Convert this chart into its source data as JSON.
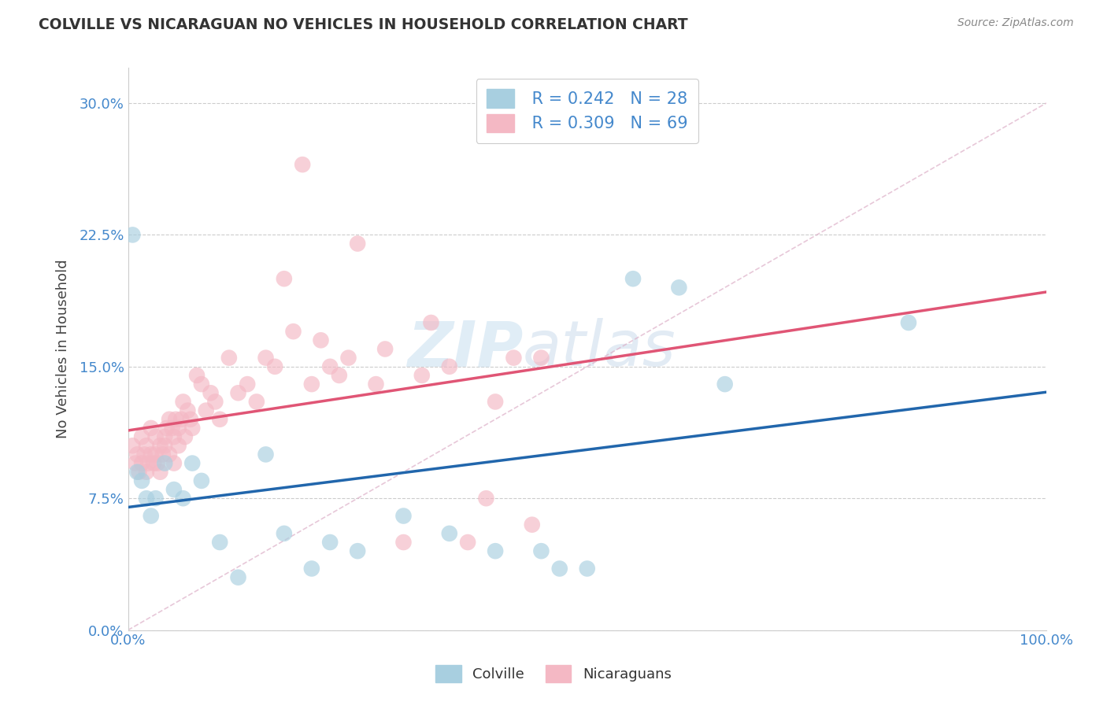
{
  "title": "COLVILLE VS NICARAGUAN NO VEHICLES IN HOUSEHOLD CORRELATION CHART",
  "source": "Source: ZipAtlas.com",
  "ylabel": "No Vehicles in Household",
  "xlim": [
    0,
    100
  ],
  "ylim": [
    0,
    32
  ],
  "ytick_vals": [
    0,
    7.5,
    15.0,
    22.5,
    30.0
  ],
  "ytick_labels": [
    "0.0%",
    "7.5%",
    "15.0%",
    "22.5%",
    "30.0%"
  ],
  "xtick_vals": [
    0,
    100
  ],
  "xtick_labels": [
    "0.0%",
    "100.0%"
  ],
  "legend_r1": "R = 0.242",
  "legend_n1": "N = 28",
  "legend_r2": "R = 0.309",
  "legend_n2": "N = 69",
  "colville_color": "#a8cfe0",
  "nicaraguan_color": "#f4b8c4",
  "line_color_colville": "#2166ac",
  "line_color_nicaraguan": "#e05575",
  "diagonal_color": "#e0b0c8",
  "watermark_zip": "ZIP",
  "watermark_atlas": "atlas",
  "colville_x": [
    0.5,
    1.0,
    1.5,
    2.0,
    2.5,
    3.0,
    4.0,
    5.0,
    6.0,
    7.0,
    8.0,
    10.0,
    12.0,
    15.0,
    17.0,
    20.0,
    22.0,
    25.0,
    30.0,
    35.0,
    40.0,
    45.0,
    47.0,
    50.0,
    55.0,
    60.0,
    65.0,
    85.0
  ],
  "colville_y": [
    22.5,
    9.0,
    8.5,
    7.5,
    6.5,
    7.5,
    9.5,
    8.0,
    7.5,
    9.5,
    8.5,
    5.0,
    3.0,
    10.0,
    5.5,
    3.5,
    5.0,
    4.5,
    6.5,
    5.5,
    4.5,
    4.5,
    3.5,
    3.5,
    20.0,
    19.5,
    14.0,
    17.5
  ],
  "nicaraguan_x": [
    0.5,
    0.8,
    1.0,
    1.2,
    1.5,
    1.5,
    1.8,
    2.0,
    2.0,
    2.2,
    2.5,
    2.5,
    2.8,
    3.0,
    3.0,
    3.2,
    3.5,
    3.5,
    3.8,
    4.0,
    4.0,
    4.2,
    4.5,
    4.5,
    4.8,
    5.0,
    5.0,
    5.2,
    5.5,
    5.5,
    5.8,
    6.0,
    6.2,
    6.5,
    6.8,
    7.0,
    7.5,
    8.0,
    8.5,
    9.0,
    9.5,
    10.0,
    11.0,
    12.0,
    13.0,
    14.0,
    15.0,
    16.0,
    17.0,
    18.0,
    19.0,
    20.0,
    21.0,
    22.0,
    23.0,
    24.0,
    25.0,
    27.0,
    28.0,
    30.0,
    32.0,
    33.0,
    35.0,
    37.0,
    39.0,
    40.0,
    42.0,
    44.0,
    45.0
  ],
  "nicaraguan_y": [
    10.5,
    9.5,
    10.0,
    9.0,
    9.5,
    11.0,
    10.0,
    10.5,
    9.0,
    9.5,
    10.0,
    11.5,
    9.5,
    10.0,
    11.0,
    9.5,
    10.5,
    9.0,
    10.0,
    11.0,
    10.5,
    11.5,
    10.0,
    12.0,
    11.5,
    11.0,
    9.5,
    12.0,
    11.5,
    10.5,
    12.0,
    13.0,
    11.0,
    12.5,
    12.0,
    11.5,
    14.5,
    14.0,
    12.5,
    13.5,
    13.0,
    12.0,
    15.5,
    13.5,
    14.0,
    13.0,
    15.5,
    15.0,
    20.0,
    17.0,
    26.5,
    14.0,
    16.5,
    15.0,
    14.5,
    15.5,
    22.0,
    14.0,
    16.0,
    5.0,
    14.5,
    17.5,
    15.0,
    5.0,
    7.5,
    13.0,
    15.5,
    6.0,
    15.5
  ]
}
